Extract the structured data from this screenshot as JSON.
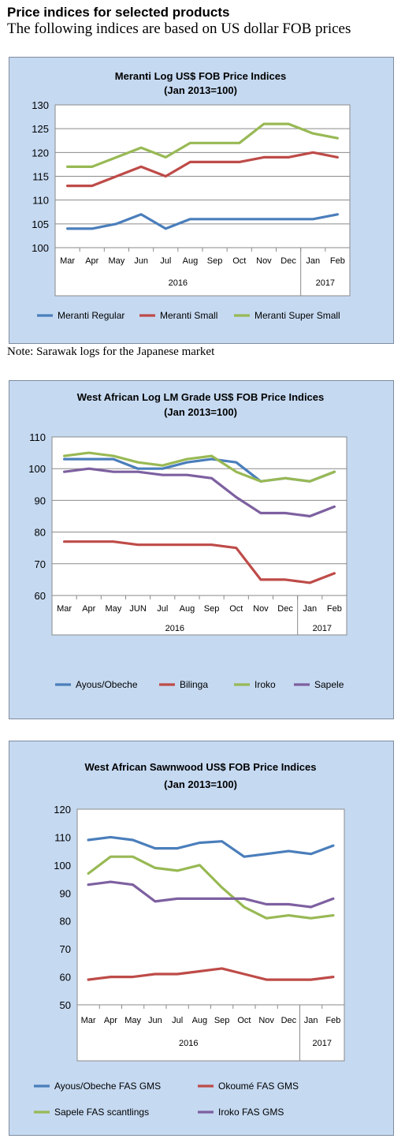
{
  "page": {
    "heading": "Price indices for selected products",
    "subheading": "The following indices are based on US dollar FOB prices",
    "note": "Note: Sarawak logs for the Japanese market"
  },
  "chart_data": [
    {
      "type": "line",
      "title": "Meranti Log US$ FOB Price Indices",
      "subtitle": "(Jan 2013=100)",
      "categories": [
        "Mar",
        "Apr",
        "May",
        "Jun",
        "Jul",
        "Aug",
        "Sep",
        "Oct",
        "Nov",
        "Dec",
        "Jan",
        "Feb"
      ],
      "year_groups": [
        {
          "label": "2016",
          "span": 10
        },
        {
          "label": "2017",
          "span": 2
        }
      ],
      "ylim": [
        100,
        130
      ],
      "yticks": [
        100,
        105,
        110,
        115,
        120,
        125,
        130
      ],
      "grid": true,
      "legend_position": "bottom",
      "series": [
        {
          "name": "Meranti Regular",
          "color": "#4a7ebb",
          "values": [
            104,
            104,
            105,
            107,
            104,
            106,
            106,
            106,
            106,
            106,
            106,
            107
          ]
        },
        {
          "name": "Meranti Small",
          "color": "#be4b48",
          "values": [
            113,
            113,
            115,
            117,
            115,
            118,
            118,
            118,
            119,
            119,
            120,
            119
          ]
        },
        {
          "name": "Meranti Super Small",
          "color": "#98b954",
          "values": [
            117,
            117,
            119,
            121,
            119,
            122,
            122,
            122,
            126,
            126,
            124,
            123
          ]
        }
      ]
    },
    {
      "type": "line",
      "title": "West African Log LM Grade US$ FOB Price Indices",
      "subtitle": "(Jan 2013=100)",
      "categories": [
        "Mar",
        "Apr",
        "May",
        "JUN",
        "Jul",
        "Aug",
        "Sep",
        "Oct",
        "Nov",
        "Dec",
        "Jan",
        "Feb"
      ],
      "year_groups": [
        {
          "label": "2016",
          "span": 10
        },
        {
          "label": "2017",
          "span": 2
        }
      ],
      "ylim": [
        60,
        110
      ],
      "yticks": [
        60,
        70,
        80,
        90,
        100,
        110
      ],
      "grid": true,
      "legend_position": "bottom",
      "series": [
        {
          "name": "Ayous/Obeche",
          "color": "#4a7ebb",
          "values": [
            103,
            103,
            103,
            100,
            100,
            102,
            103,
            102,
            96,
            97,
            96,
            99
          ]
        },
        {
          "name": "Bilinga",
          "color": "#be4b48",
          "values": [
            77,
            77,
            77,
            76,
            76,
            76,
            76,
            75,
            65,
            65,
            64,
            67
          ]
        },
        {
          "name": "Iroko",
          "color": "#98b954",
          "values": [
            104,
            105,
            104,
            102,
            101,
            103,
            104,
            99,
            96,
            97,
            96,
            99
          ]
        },
        {
          "name": "Sapele",
          "color": "#7d60a0",
          "values": [
            99,
            100,
            99,
            99,
            98,
            98,
            97,
            91,
            86,
            86,
            85,
            88
          ]
        }
      ]
    },
    {
      "type": "line",
      "title": "West African Sawnwood US$ FOB Price Indices",
      "subtitle": "(Jan 2013=100)",
      "categories": [
        "Mar",
        "Apr",
        "May",
        "Jun",
        "Jul",
        "Aug",
        "Sep",
        "Oct",
        "Nov",
        "Dec",
        "Jan",
        "Feb"
      ],
      "year_groups": [
        {
          "label": "2016",
          "span": 10
        },
        {
          "label": "2017",
          "span": 2
        }
      ],
      "ylim": [
        50,
        120
      ],
      "yticks": [
        50,
        60,
        70,
        80,
        90,
        100,
        110,
        120
      ],
      "grid": false,
      "legend_position": "bottom",
      "series": [
        {
          "name": "Ayous/Obeche FAS GMS",
          "color": "#4a7ebb",
          "values": [
            109,
            110,
            109,
            106,
            106,
            108,
            108.5,
            103,
            104,
            105,
            104,
            107
          ]
        },
        {
          "name": "Okoumé FAS GMS",
          "color": "#be4b48",
          "values": [
            59,
            60,
            60,
            61,
            61,
            62,
            63,
            61,
            59,
            59,
            59,
            60
          ]
        },
        {
          "name": "Sapele FAS scantlings",
          "color": "#98b954",
          "values": [
            97,
            103,
            103,
            99,
            98,
            100,
            92,
            85,
            81,
            82,
            81,
            82
          ]
        },
        {
          "name": "Iroko FAS GMS",
          "color": "#7d60a0",
          "values": [
            93,
            94,
            93,
            87,
            88,
            88,
            88,
            88,
            86,
            86,
            85,
            88
          ]
        }
      ]
    }
  ]
}
